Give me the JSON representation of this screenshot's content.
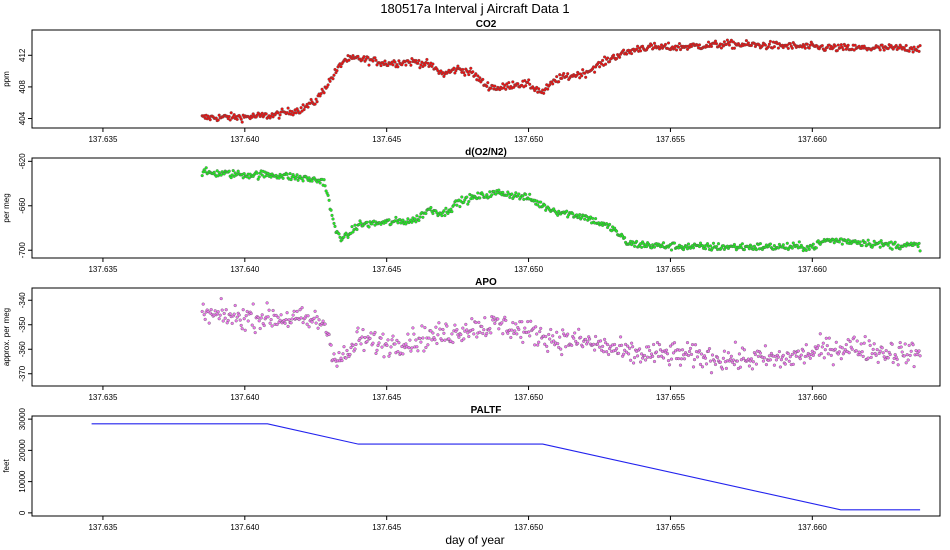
{
  "title": "180517a   Interval j Aircraft Data 1",
  "xlabel": "day of year",
  "colors": {
    "co2": "#ee1111",
    "o2n2": "#22ee22",
    "apo": "#ee77ee",
    "paltf": "#2222ee",
    "outline": "#555555"
  },
  "chart_data": [
    {
      "type": "scatter",
      "title": "CO2",
      "ylabel": "ppm",
      "xlim": [
        137.6325,
        137.6645
      ],
      "ylim": [
        402.8,
        415.2
      ],
      "x_ticks": [
        "137.635",
        "137.640",
        "137.645",
        "137.650",
        "137.655",
        "137.660"
      ],
      "y_ticks": [
        "404",
        "408",
        "412"
      ],
      "x_range": [
        137.6385,
        137.6638
      ],
      "trend": [
        {
          "x": 137.6385,
          "y": 404.1
        },
        {
          "x": 137.64,
          "y": 404.2
        },
        {
          "x": 137.641,
          "y": 404.4
        },
        {
          "x": 137.642,
          "y": 405.2
        },
        {
          "x": 137.6425,
          "y": 406.2
        },
        {
          "x": 137.643,
          "y": 408.8
        },
        {
          "x": 137.6435,
          "y": 411.4
        },
        {
          "x": 137.644,
          "y": 411.6
        },
        {
          "x": 137.645,
          "y": 411.0
        },
        {
          "x": 137.646,
          "y": 411.2
        },
        {
          "x": 137.6465,
          "y": 410.8
        },
        {
          "x": 137.647,
          "y": 409.6
        },
        {
          "x": 137.6475,
          "y": 410.3
        },
        {
          "x": 137.648,
          "y": 409.8
        },
        {
          "x": 137.6485,
          "y": 408.2
        },
        {
          "x": 137.649,
          "y": 407.8
        },
        {
          "x": 137.6495,
          "y": 408.4
        },
        {
          "x": 137.65,
          "y": 408.3
        },
        {
          "x": 137.6505,
          "y": 407.3
        },
        {
          "x": 137.651,
          "y": 409.0
        },
        {
          "x": 137.652,
          "y": 409.8
        },
        {
          "x": 137.653,
          "y": 411.8
        },
        {
          "x": 137.654,
          "y": 413.0
        },
        {
          "x": 137.655,
          "y": 413.0
        },
        {
          "x": 137.657,
          "y": 413.4
        },
        {
          "x": 137.659,
          "y": 413.2
        },
        {
          "x": 137.661,
          "y": 412.9
        },
        {
          "x": 137.6638,
          "y": 412.9
        }
      ],
      "noise": 0.35
    },
    {
      "type": "scatter",
      "title": "d(O2/N2)",
      "ylabel": "per meg",
      "xlim": [
        137.6325,
        137.6645
      ],
      "ylim": [
        -707,
        -617
      ],
      "x_ticks": [
        "137.635",
        "137.640",
        "137.645",
        "137.650",
        "137.655",
        "137.660"
      ],
      "y_ticks": [
        "-620",
        "-660",
        "-700"
      ],
      "x_range": [
        137.6385,
        137.6638
      ],
      "trend": [
        {
          "x": 137.6385,
          "y": -630
        },
        {
          "x": 137.64,
          "y": -632
        },
        {
          "x": 137.641,
          "y": -632
        },
        {
          "x": 137.642,
          "y": -635
        },
        {
          "x": 137.6428,
          "y": -638
        },
        {
          "x": 137.6432,
          "y": -683
        },
        {
          "x": 137.6435,
          "y": -690
        },
        {
          "x": 137.644,
          "y": -677
        },
        {
          "x": 137.645,
          "y": -675
        },
        {
          "x": 137.646,
          "y": -673
        },
        {
          "x": 137.6465,
          "y": -663
        },
        {
          "x": 137.647,
          "y": -667
        },
        {
          "x": 137.6475,
          "y": -657
        },
        {
          "x": 137.648,
          "y": -653
        },
        {
          "x": 137.649,
          "y": -648
        },
        {
          "x": 137.65,
          "y": -653
        },
        {
          "x": 137.6505,
          "y": -660
        },
        {
          "x": 137.651,
          "y": -665
        },
        {
          "x": 137.652,
          "y": -670
        },
        {
          "x": 137.653,
          "y": -681
        },
        {
          "x": 137.6535,
          "y": -694
        },
        {
          "x": 137.6545,
          "y": -696
        },
        {
          "x": 137.656,
          "y": -697
        },
        {
          "x": 137.658,
          "y": -697
        },
        {
          "x": 137.66,
          "y": -697
        },
        {
          "x": 137.6605,
          "y": -691
        },
        {
          "x": 137.6615,
          "y": -692
        },
        {
          "x": 137.6625,
          "y": -695
        },
        {
          "x": 137.6638,
          "y": -696
        }
      ],
      "noise": 2.5
    },
    {
      "type": "scatter",
      "title": "APO",
      "ylabel": "approx. per meg",
      "xlim": [
        137.6325,
        137.6645
      ],
      "ylim": [
        -375,
        -335
      ],
      "x_ticks": [
        "137.635",
        "137.640",
        "137.645",
        "137.650",
        "137.655",
        "137.660"
      ],
      "y_ticks": [
        "-340",
        "-350",
        "-360",
        "-370"
      ],
      "x_range": [
        137.6385,
        137.6638
      ],
      "trend": [
        {
          "x": 137.6385,
          "y": -346
        },
        {
          "x": 137.64,
          "y": -347
        },
        {
          "x": 137.641,
          "y": -347
        },
        {
          "x": 137.642,
          "y": -348
        },
        {
          "x": 137.6428,
          "y": -349
        },
        {
          "x": 137.6432,
          "y": -364
        },
        {
          "x": 137.6436,
          "y": -363
        },
        {
          "x": 137.644,
          "y": -356
        },
        {
          "x": 137.645,
          "y": -358
        },
        {
          "x": 137.646,
          "y": -356
        },
        {
          "x": 137.647,
          "y": -354
        },
        {
          "x": 137.648,
          "y": -351
        },
        {
          "x": 137.649,
          "y": -350
        },
        {
          "x": 137.65,
          "y": -353
        },
        {
          "x": 137.651,
          "y": -356
        },
        {
          "x": 137.652,
          "y": -357
        },
        {
          "x": 137.653,
          "y": -360
        },
        {
          "x": 137.6535,
          "y": -362
        },
        {
          "x": 137.655,
          "y": -362
        },
        {
          "x": 137.657,
          "y": -364
        },
        {
          "x": 137.659,
          "y": -364
        },
        {
          "x": 137.6605,
          "y": -360
        },
        {
          "x": 137.6615,
          "y": -359
        },
        {
          "x": 137.6625,
          "y": -361
        },
        {
          "x": 137.6638,
          "y": -362
        }
      ],
      "noise": 3.5
    },
    {
      "type": "line",
      "title": "PALTF",
      "ylabel": "feet",
      "xlim": [
        137.6325,
        137.6645
      ],
      "ylim": [
        -1000,
        31000
      ],
      "x_ticks": [
        "137.635",
        "137.640",
        "137.645",
        "137.650",
        "137.655",
        "137.660"
      ],
      "y_ticks": [
        "0",
        "10000",
        "20000",
        "30000"
      ],
      "points": [
        {
          "x": 137.6346,
          "y": 28500
        },
        {
          "x": 137.6408,
          "y": 28500
        },
        {
          "x": 137.644,
          "y": 22000
        },
        {
          "x": 137.6505,
          "y": 22000
        },
        {
          "x": 137.661,
          "y": 1000
        },
        {
          "x": 137.6638,
          "y": 1000
        }
      ]
    }
  ]
}
